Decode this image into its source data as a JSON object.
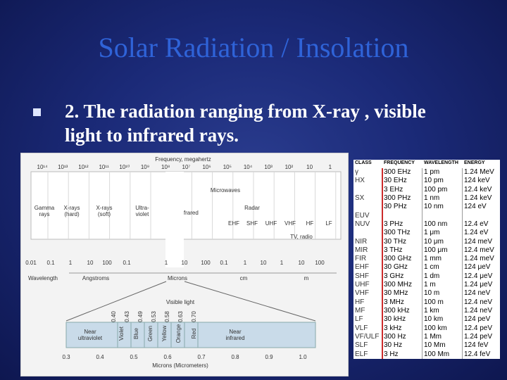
{
  "slide": {
    "title": "Solar Radiation / Insolation",
    "bullet": "2. The radiation ranging from X-ray , visible light to infrared rays."
  },
  "spectrum_figure": {
    "top_label": "Frequency, megahertz",
    "freq_ticks": [
      "10¹⁴",
      "10¹³",
      "10¹²",
      "10¹¹",
      "10¹⁰",
      "10⁹",
      "10⁸",
      "10⁷",
      "10⁶",
      "10⁵",
      "10⁴",
      "10³",
      "10²",
      "10",
      "1"
    ],
    "bands": {
      "gamma": "Gamma\nrays",
      "xray_hard": "X-rays\n(hard)",
      "xray_soft": "X-rays\n(soft)",
      "uv": "Ultra-\nviolet",
      "infrared": "Infrared",
      "microwaves": "Microwaves",
      "radar": "Radar",
      "tv_radio": "TV, radio",
      "ehf": "EHF",
      "shf": "SHF",
      "uhf": "UHF",
      "vhf": "VHF",
      "hf": "HF",
      "lf": "LF"
    },
    "wave_ticks": [
      "0.01",
      "0.1",
      "1",
      "10",
      "100",
      "0.1",
      "1",
      "10",
      "100",
      "0.1",
      "1",
      "10",
      "1",
      "10",
      "100"
    ],
    "wavelength_label": "Wavelength",
    "unit_angstroms": "Angstroms",
    "unit_microns": "Microns",
    "unit_cm": "cm",
    "unit_m": "m",
    "visible_light": "Visible light",
    "visible_ticks": [
      "0.40",
      "0.43",
      "0.49",
      "0.53",
      "0.58",
      "0.63",
      "0.70"
    ],
    "visible_bands": [
      "Near\nultraviolet",
      "Violet",
      "Blue",
      "Green",
      "Yellow",
      "Orange",
      "Red",
      "Near\ninfrared"
    ],
    "micron_ticks": [
      "0.3",
      "0.4",
      "0.5",
      "0.6",
      "0.7",
      "0.8",
      "0.9",
      "1.0"
    ],
    "bottom_label": "Microns (Micrometers)"
  },
  "table": {
    "headers": {
      "class": "CLASS",
      "frequency": "FREQUENCY",
      "wavelength": "WAVELENGTH",
      "energy": "ENERGY"
    },
    "rows": [
      {
        "cls": "γ",
        "freq": "300 EHz",
        "wave": "1 pm",
        "energy": "1.24 MeV"
      },
      {
        "cls": "HX",
        "freq": "30 EHz",
        "wave": "10 pm",
        "energy": "124 keV"
      },
      {
        "cls": "",
        "freq": "3 EHz",
        "wave": "100 pm",
        "energy": "12.4 keV"
      },
      {
        "cls": "SX",
        "freq": "300 PHz",
        "wave": "1 nm",
        "energy": "1.24 keV"
      },
      {
        "cls": "",
        "freq": "30 PHz",
        "wave": "10 nm",
        "energy": "124 eV"
      },
      {
        "cls": "EUV",
        "freq": "",
        "wave": "",
        "energy": ""
      },
      {
        "cls": "NUV",
        "freq": "3 PHz",
        "wave": "100 nm",
        "energy": "12.4 eV"
      },
      {
        "cls": "",
        "freq": "300 THz",
        "wave": "1 μm",
        "energy": "1.24 eV"
      },
      {
        "cls": "NIR",
        "freq": "30 THz",
        "wave": "10 μm",
        "energy": "124 meV"
      },
      {
        "cls": "MIR",
        "freq": "3 THz",
        "wave": "100 μm",
        "energy": "12.4 meV"
      },
      {
        "cls": "FIR",
        "freq": "300 GHz",
        "wave": "1 mm",
        "energy": "1.24 meV"
      },
      {
        "cls": "EHF",
        "freq": "30 GHz",
        "wave": "1 cm",
        "energy": "124 μeV"
      },
      {
        "cls": "SHF",
        "freq": "3 GHz",
        "wave": "1 dm",
        "energy": "12.4 μeV"
      },
      {
        "cls": "UHF",
        "freq": "300 MHz",
        "wave": "1 m",
        "energy": "1.24 μeV"
      },
      {
        "cls": "VHF",
        "freq": "30 MHz",
        "wave": "10 m",
        "energy": "124 neV"
      },
      {
        "cls": "HF",
        "freq": "3 MHz",
        "wave": "100 m",
        "energy": "12.4 neV"
      },
      {
        "cls": "MF",
        "freq": "300 kHz",
        "wave": "1 km",
        "energy": "1.24 neV"
      },
      {
        "cls": "LF",
        "freq": "30 kHz",
        "wave": "10 km",
        "energy": "124 peV"
      },
      {
        "cls": "VLF",
        "freq": "3 kHz",
        "wave": "100 km",
        "energy": "12.4 peV"
      },
      {
        "cls": "VF/ULF",
        "freq": "300 Hz",
        "wave": "1 Mm",
        "energy": "1.24 peV"
      },
      {
        "cls": "SLF",
        "freq": "30 Hz",
        "wave": "10 Mm",
        "energy": "124 feV"
      },
      {
        "cls": "ELF",
        "freq": "3 Hz",
        "wave": "100 Mm",
        "energy": "12.4 feV"
      }
    ]
  }
}
